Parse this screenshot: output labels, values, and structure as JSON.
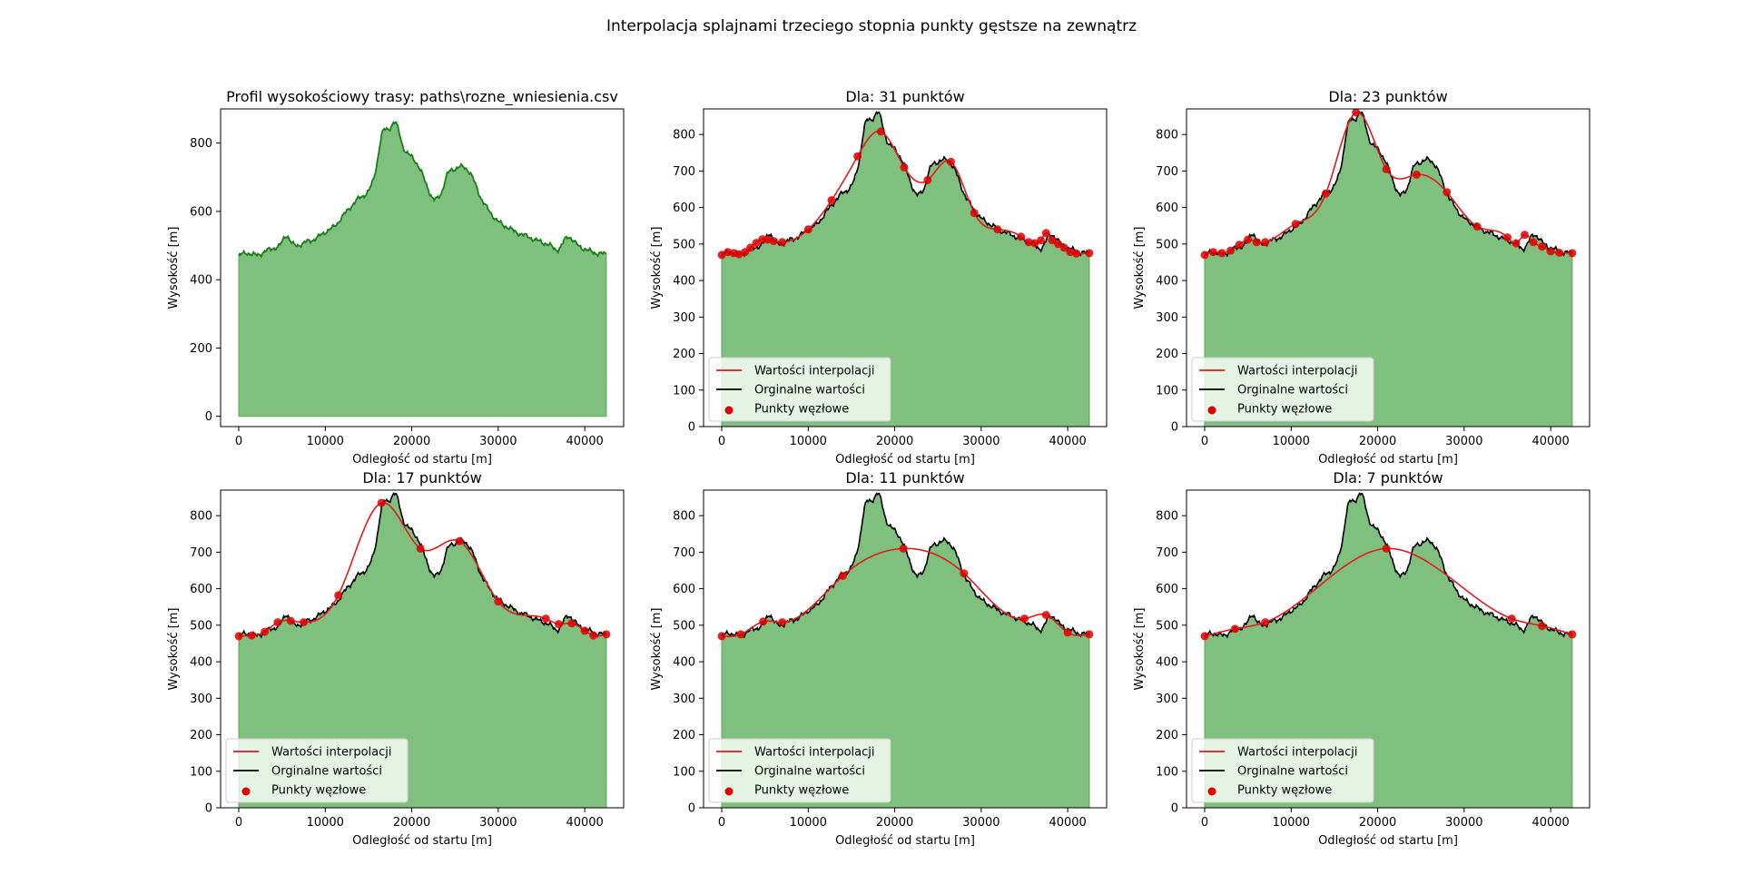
{
  "figure": {
    "suptitle": "Interpolacja splajnami trzeciego stopnia punkty gęstsze na zewnątrz"
  },
  "colors": {
    "fill": "#7fc07f",
    "profile_line": "#1a7f1a",
    "interpolation": "#e41a1c",
    "original": "#000000",
    "nodes": "#e00000"
  },
  "legend": {
    "interpolation": "Wartości interpolacji",
    "original": "Orginalne wartości",
    "nodes": "Punkty węzłowe"
  },
  "chart_data": [
    {
      "type": "area",
      "title": "Profil wysokościowy trasy: paths\\rozne_wniesienia.csv",
      "xlabel": "Odległość od startu [m]",
      "ylabel": "Wysokość [m]",
      "xlim": [
        -2100,
        44500
      ],
      "ylim": [
        -30,
        900
      ],
      "xticks": [
        0,
        10000,
        20000,
        30000,
        40000
      ],
      "yticks": [
        0,
        200,
        400,
        600,
        800
      ],
      "legend": false,
      "profile": {
        "x": [
          0,
          1000,
          2000,
          3000,
          4000,
          5000,
          5500,
          6000,
          7000,
          8000,
          9000,
          10000,
          11000,
          12000,
          13000,
          14000,
          15000,
          16000,
          16500,
          17000,
          17500,
          18000,
          18500,
          19000,
          20000,
          21000,
          22000,
          22500,
          23000,
          23500,
          24000,
          25000,
          26000,
          27000,
          28000,
          29000,
          30000,
          31000,
          32000,
          33000,
          34000,
          35000,
          36000,
          37000,
          38000,
          39000,
          40000,
          41000,
          42500
        ],
        "y": [
          470,
          478,
          472,
          482,
          492,
          510,
          530,
          512,
          502,
          512,
          522,
          540,
          555,
          585,
          615,
          640,
          660,
          745,
          820,
          840,
          845,
          860,
          835,
          790,
          760,
          720,
          660,
          635,
          640,
          660,
          700,
          725,
          730,
          700,
          640,
          600,
          570,
          555,
          540,
          530,
          520,
          510,
          500,
          490,
          525,
          505,
          490,
          480,
          475
        ]
      }
    },
    {
      "type": "line",
      "title": "Dla: 31 punktów",
      "xlabel": "Odległość od startu [m]",
      "ylabel": "Wysokość [m]",
      "xlim": [
        -2100,
        44500
      ],
      "ylim": [
        0,
        870
      ],
      "xticks": [
        0,
        10000,
        20000,
        30000,
        40000
      ],
      "yticks": [
        0,
        100,
        200,
        300,
        400,
        500,
        600,
        700,
        800
      ],
      "legend": true,
      "nodes": {
        "x": [
          0,
          700,
          1400,
          2000,
          2700,
          3300,
          4000,
          4700,
          5300,
          6000,
          7000,
          10000,
          12700,
          15700,
          18400,
          21100,
          23800,
          26500,
          29200,
          31900,
          34600,
          35500,
          36200,
          36900,
          37500,
          38200,
          38900,
          39600,
          40300,
          41000,
          42500
        ],
        "y": [
          470,
          478,
          475,
          472,
          478,
          490,
          503,
          513,
          512,
          508,
          505,
          540,
          620,
          740,
          808,
          710,
          675,
          725,
          585,
          540,
          520,
          505,
          502,
          510,
          530,
          510,
          500,
          490,
          478,
          474,
          475
        ]
      }
    },
    {
      "type": "line",
      "title": "Dla: 23 punktów",
      "xlabel": "Odległość od startu [m]",
      "ylabel": "Wysokość [m]",
      "xlim": [
        -2100,
        44500
      ],
      "ylim": [
        0,
        870
      ],
      "xticks": [
        0,
        10000,
        20000,
        30000,
        40000
      ],
      "yticks": [
        0,
        100,
        200,
        300,
        400,
        500,
        600,
        700,
        800
      ],
      "legend": true,
      "nodes": {
        "x": [
          0,
          1000,
          2000,
          3000,
          4000,
          5000,
          6000,
          7000,
          10500,
          14000,
          17500,
          21000,
          24500,
          28000,
          31500,
          35000,
          36000,
          37000,
          38000,
          39000,
          40000,
          41000,
          42500
        ],
        "y": [
          470,
          478,
          475,
          482,
          498,
          512,
          505,
          505,
          555,
          638,
          860,
          705,
          690,
          642,
          548,
          518,
          502,
          525,
          505,
          493,
          480,
          476,
          475
        ]
      }
    },
    {
      "type": "line",
      "title": "Dla: 17 punktów",
      "xlabel": "Odległość od startu [m]",
      "ylabel": "Wysokość [m]",
      "xlim": [
        -2100,
        44500
      ],
      "ylim": [
        0,
        870
      ],
      "xticks": [
        0,
        10000,
        20000,
        30000,
        40000
      ],
      "yticks": [
        0,
        100,
        200,
        300,
        400,
        500,
        600,
        700,
        800
      ],
      "legend": true,
      "nodes": {
        "x": [
          0,
          1500,
          3000,
          4500,
          6000,
          7500,
          11500,
          16500,
          21000,
          25500,
          30000,
          35500,
          37000,
          38500,
          40000,
          41000,
          42500
        ],
        "y": [
          470,
          472,
          482,
          508,
          512,
          508,
          582,
          835,
          710,
          730,
          565,
          518,
          503,
          505,
          485,
          472,
          475
        ]
      }
    },
    {
      "type": "line",
      "title": "Dla: 11 punktów",
      "xlabel": "Odległość od startu [m]",
      "ylabel": "Wysokość [m]",
      "xlim": [
        -2100,
        44500
      ],
      "ylim": [
        0,
        870
      ],
      "xticks": [
        0,
        10000,
        20000,
        30000,
        40000
      ],
      "yticks": [
        0,
        100,
        200,
        300,
        400,
        500,
        600,
        700,
        800
      ],
      "legend": true,
      "nodes": {
        "x": [
          0,
          2200,
          4800,
          7000,
          14000,
          21000,
          28000,
          35000,
          37500,
          40000,
          42500
        ],
        "y": [
          470,
          475,
          510,
          508,
          635,
          710,
          642,
          518,
          528,
          480,
          475
        ]
      }
    },
    {
      "type": "line",
      "title": "Dla: 7 punktów",
      "xlabel": "Odległość od startu [m]",
      "ylabel": "Wysokość [m]",
      "xlim": [
        -2100,
        44500
      ],
      "ylim": [
        0,
        870
      ],
      "xticks": [
        0,
        10000,
        20000,
        30000,
        40000
      ],
      "yticks": [
        0,
        100,
        200,
        300,
        400,
        500,
        600,
        700,
        800
      ],
      "legend": true,
      "nodes": {
        "x": [
          0,
          3500,
          7000,
          21000,
          35500,
          39000,
          42500
        ],
        "y": [
          470,
          490,
          508,
          710,
          518,
          498,
          475
        ]
      }
    }
  ]
}
